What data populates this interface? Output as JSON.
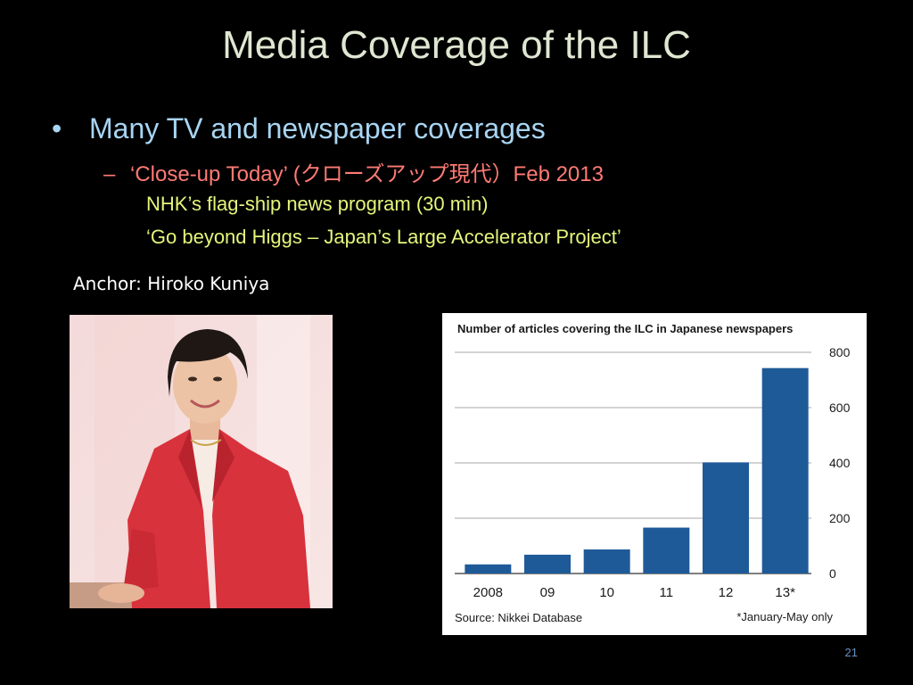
{
  "slide": {
    "title": "Media Coverage of the ILC",
    "bullet_symbol": "•",
    "bullet1": "Many TV and newspaper coverages",
    "sub_symbol": "–",
    "bullet2": "‘Close-up Today’ (クローズアップ現代）Feb 2013",
    "sub1": "NHK’s flag-ship news program (30 min)",
    "sub2": "‘Go beyond Higgs – Japan’s Large Accelerator Project’",
    "anchor_caption": "Anchor: Hiroko Kuniya",
    "page_number": "21"
  },
  "colors": {
    "background": "#000000",
    "title": "#dfe7d2",
    "bullet1": "#a8d5f3",
    "bullet2": "#ff7a75",
    "sub": "#e5f57b",
    "bar": "#1f5a98",
    "jacket": "#d8323c"
  },
  "chart_data": {
    "type": "bar",
    "title": "Number of articles covering the ILC in Japanese newspapers",
    "categories": [
      "2008",
      "09",
      "10",
      "11",
      "12",
      "13*"
    ],
    "values": [
      33,
      68,
      87,
      166,
      402,
      743
    ],
    "ylim": [
      0,
      800
    ],
    "yticks": [
      0,
      200,
      400,
      600,
      800
    ],
    "y_axis_side": "right",
    "grid": true,
    "source": "Source: Nikkei Database",
    "footnote": "*January-May only"
  }
}
